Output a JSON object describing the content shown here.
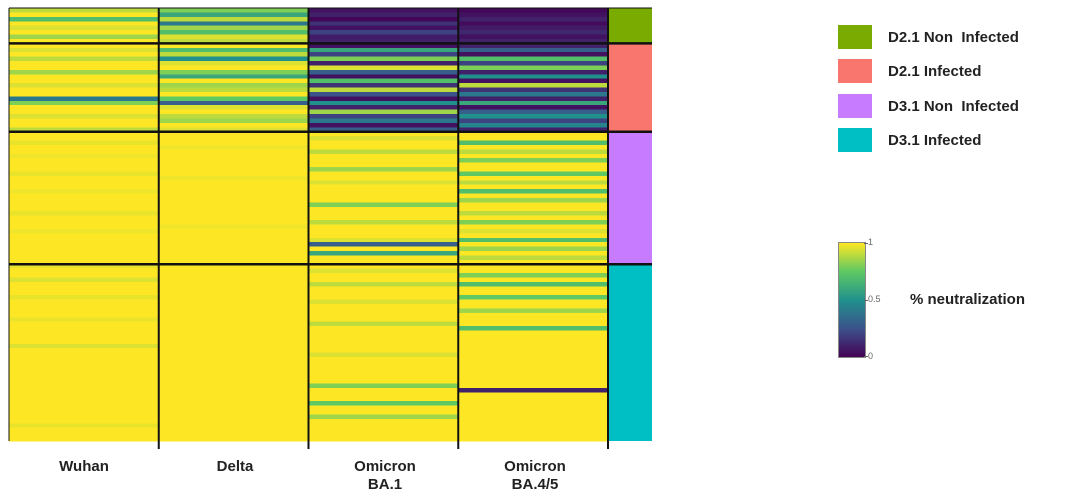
{
  "chart_data": {
    "type": "heatmap",
    "columns": [
      "Wuhan",
      "Delta",
      "Omicron BA.1",
      "Omicron BA.4/5"
    ],
    "column_labels": [
      {
        "line1": "Wuhan",
        "line2": ""
      },
      {
        "line1": "Delta",
        "line2": ""
      },
      {
        "line1": "Omicron",
        "line2": "BA.1"
      },
      {
        "line1": "Omicron",
        "line2": "BA.4/5"
      }
    ],
    "colorscale": "viridis",
    "value_range": [
      0,
      1
    ],
    "groups": [
      {
        "name": "D2.1 Non Infected",
        "color": "#7aab00",
        "rows": 8,
        "columns": {
          "Wuhan": [
            0.9,
            1,
            0.7,
            1,
            0.95,
            1,
            0.85,
            1
          ],
          "Delta": [
            0.8,
            0.6,
            0.9,
            0.4,
            0.85,
            0.7,
            0.95,
            0.9
          ],
          "Omicron BA.1": [
            0.05,
            0.1,
            0.02,
            0.15,
            0.05,
            0.2,
            0.08,
            0.1
          ],
          "Omicron BA.4/5": [
            0.02,
            0.05,
            0.1,
            0.03,
            0.08,
            0.12,
            0.05,
            0.1
          ]
        }
      },
      {
        "name": "D2.1 Infected",
        "color": "#f8766d",
        "rows": 20,
        "columns": {
          "Wuhan": [
            1,
            0.95,
            1,
            0.9,
            1,
            1,
            0.85,
            1,
            1,
            0.95,
            1,
            1,
            0.4,
            0.8,
            1,
            1,
            0.95,
            1,
            1,
            0.9
          ],
          "Delta": [
            1,
            0.7,
            0.9,
            0.5,
            0.95,
            1,
            0.8,
            0.6,
            1,
            0.85,
            0.9,
            1,
            0.75,
            0.3,
            0.95,
            1,
            0.9,
            0.85,
            1,
            0.95
          ],
          "Omicron BA.1": [
            0.05,
            0.6,
            0.2,
            0.8,
            0.1,
            0.95,
            0.3,
            0.05,
            0.7,
            0.15,
            0.9,
            0.25,
            0.05,
            0.5,
            0.1,
            0.85,
            0.2,
            0.4,
            0.05,
            0.3
          ],
          "Omicron BA.4/5": [
            0.1,
            0.3,
            0.05,
            0.7,
            0.2,
            0.8,
            0.1,
            0.5,
            0.05,
            0.9,
            0.15,
            0.4,
            0.1,
            0.6,
            0.05,
            0.3,
            0.5,
            0.2,
            0.45,
            0.1
          ]
        }
      },
      {
        "name": "D3.1 Non Infected",
        "color": "#c77cff",
        "rows": 30,
        "columns": {
          "Wuhan": [
            1,
            1,
            0.97,
            1,
            1,
            0.98,
            1,
            1,
            1,
            0.97,
            1,
            1,
            1,
            0.98,
            1,
            1,
            1,
            1,
            0.97,
            1,
            1,
            1,
            0.98,
            1,
            1,
            1,
            1,
            1,
            1,
            1
          ],
          "Delta": [
            1,
            1,
            1,
            0.98,
            1,
            1,
            1,
            1,
            1,
            1,
            0.98,
            1,
            1,
            1,
            1,
            1,
            1,
            1,
            1,
            1,
            1,
            0.98,
            1,
            1,
            1,
            1,
            1,
            1,
            1,
            1
          ],
          "Omicron BA.1": [
            1,
            0.95,
            1,
            1,
            0.9,
            1,
            1,
            1,
            0.85,
            1,
            1,
            0.95,
            1,
            1,
            1,
            1,
            0.8,
            1,
            1,
            1,
            0.9,
            1,
            1,
            1,
            0.95,
            0.3,
            1,
            0.6,
            1,
            1
          ],
          "Omicron BA.4/5": [
            1,
            1,
            0.7,
            1,
            0.9,
            1,
            0.8,
            1,
            1,
            0.75,
            1,
            0.9,
            1,
            0.7,
            1,
            0.85,
            1,
            1,
            0.9,
            1,
            0.8,
            1,
            0.95,
            1,
            0.7,
            1,
            0.85,
            1,
            0.9,
            1
          ]
        }
      },
      {
        "name": "D3.1 Infected",
        "color": "#00bfc4",
        "rows": 40,
        "columns": {
          "Wuhan": [
            0.97,
            1,
            1,
            0.95,
            1,
            1,
            1,
            0.97,
            1,
            1,
            1,
            1,
            0.97,
            1,
            1,
            1,
            1,
            1,
            0.95,
            1,
            1,
            1,
            1,
            1,
            1,
            1,
            1,
            1,
            1,
            1,
            1,
            1,
            1,
            1,
            1,
            1,
            0.97,
            1,
            1,
            1
          ],
          "Delta": [
            1,
            1,
            1,
            1,
            1,
            1,
            1,
            1,
            1,
            1,
            1,
            1,
            1,
            1,
            1,
            1,
            1,
            1,
            1,
            1,
            1,
            1,
            1,
            1,
            1,
            1,
            1,
            1,
            1,
            1,
            1,
            1,
            1,
            1,
            1,
            1,
            1,
            1,
            1,
            1
          ],
          "Omicron BA.1": [
            1,
            0.95,
            1,
            1,
            0.9,
            1,
            1,
            1,
            0.95,
            1,
            1,
            1,
            1,
            0.9,
            1,
            1,
            1,
            1,
            1,
            1,
            0.95,
            1,
            1,
            1,
            1,
            1,
            1,
            0.8,
            1,
            1,
            1,
            0.75,
            1,
            1,
            0.85,
            1,
            1,
            1,
            1,
            1
          ],
          "Omicron BA.4/5": [
            1,
            1,
            0.8,
            1,
            0.7,
            1,
            1,
            0.75,
            1,
            1,
            0.85,
            1,
            1,
            1,
            0.7,
            1,
            1,
            1,
            1,
            1,
            1,
            1,
            1,
            1,
            1,
            1,
            1,
            1,
            0.1,
            1,
            1,
            1,
            1,
            1,
            1,
            1,
            1,
            1,
            1,
            1
          ]
        }
      }
    ],
    "legend": {
      "entries": [
        {
          "label": "D2.1 Non  Infected",
          "color": "#7aab00"
        },
        {
          "label": "D2.1 Infected",
          "color": "#f8766d"
        },
        {
          "label": "D3.1 Non  Infected",
          "color": "#c77cff"
        },
        {
          "label": "D3.1 Infected",
          "color": "#00bfc4"
        }
      ],
      "placement": "right"
    },
    "colorbar": {
      "title": "% neutralization",
      "ticks": [
        "1",
        "0.5",
        "0"
      ]
    }
  }
}
